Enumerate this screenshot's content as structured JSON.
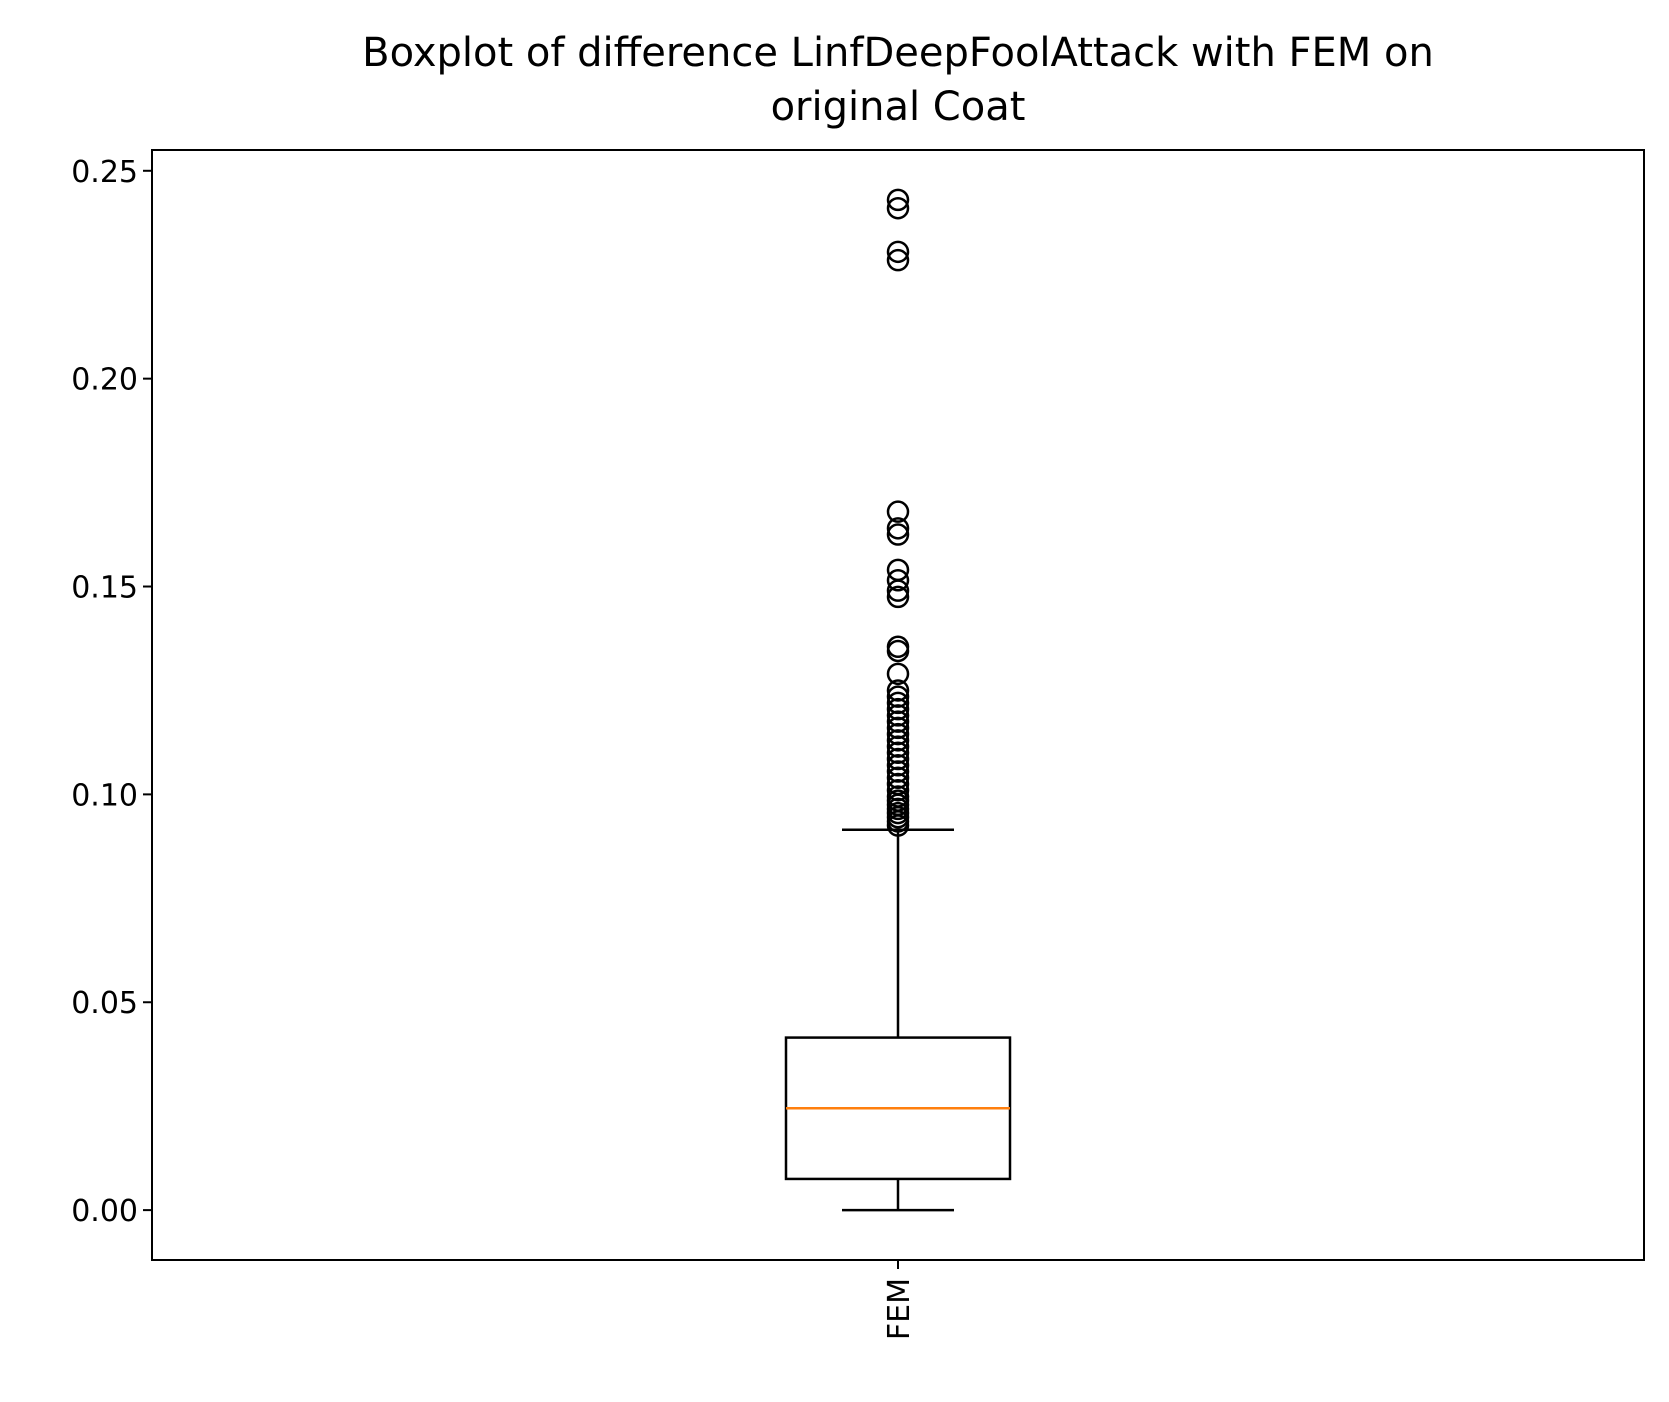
{
  "chart_data": {
    "type": "boxplot",
    "title_lines": [
      "Boxplot of difference LinfDeepFoolAttack with FEM on",
      "original Coat"
    ],
    "xlabel": "",
    "ylabel": "",
    "ylim": [
      -0.012,
      0.255
    ],
    "yticks": [
      0.0,
      0.05,
      0.1,
      0.15,
      0.2,
      0.25
    ],
    "ytick_labels": [
      "0.00",
      "0.05",
      "0.10",
      "0.15",
      "0.20",
      "0.25"
    ],
    "categories": [
      "FEM"
    ],
    "grid": false,
    "boxes": [
      {
        "name": "FEM",
        "whisker_low": 0.0,
        "q1": 0.0075,
        "median": 0.0245,
        "q3": 0.0415,
        "whisker_high": 0.0915,
        "outliers": [
          0.0925,
          0.0935,
          0.0945,
          0.0955,
          0.0965,
          0.0975,
          0.0985,
          0.0995,
          0.101,
          0.1025,
          0.104,
          0.1055,
          0.107,
          0.1085,
          0.11,
          0.1115,
          0.113,
          0.1145,
          0.116,
          0.1175,
          0.119,
          0.1205,
          0.122,
          0.1235,
          0.125,
          0.129,
          0.1345,
          0.1355,
          0.1475,
          0.149,
          0.1515,
          0.154,
          0.1625,
          0.164,
          0.168,
          0.2285,
          0.2305,
          0.241,
          0.243
        ]
      }
    ],
    "colors": {
      "box": "#000000",
      "median": "#ff7f0e",
      "outlier": "#000000"
    }
  }
}
